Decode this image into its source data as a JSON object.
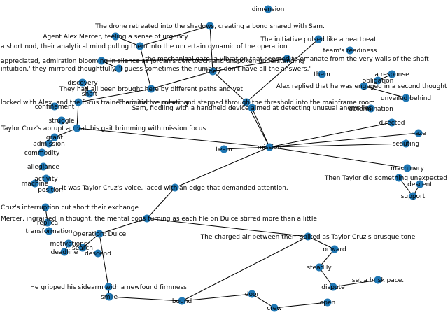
{
  "node_color": "#1f77b4",
  "edge_color": "#000000",
  "nodes": [
    {
      "id": "drone_sentence",
      "label": "The drone retreated into the shadows, creating a bond shared with Sam."
    },
    {
      "id": "dimension",
      "label": "dimension"
    },
    {
      "id": "agent_alex",
      "label": "Agent Alex Mercer, feeling a sense of urgency"
    },
    {
      "id": "initiative",
      "label": "The initiative pulsed like a heartbeat"
    },
    {
      "id": "short_nod",
      "label": "a short nod, their analytical mind pulling them into the uncertain dynamic of the operation"
    },
    {
      "id": "readiness",
      "label": "team's readiness"
    },
    {
      "id": "admiration",
      "label": "appreciated, admiration blooming in silence as Jordan's deft touch and unspoken understanding"
    },
    {
      "id": "mechanical",
      "label": "the mechanical gate, a vibration that seemed to emanate from the very walls of the shaft"
    },
    {
      "id": "intuition",
      "label": "intuition,' they mirrored thoughtfully. 'I guess sometimes the numbers don't have all the answers.'"
    },
    {
      "id": "discovery",
      "label": "discovery"
    },
    {
      "id": "shaft",
      "label": "shaft"
    },
    {
      "id": "they",
      "label": "They"
    },
    {
      "id": "them",
      "label": "them"
    },
    {
      "id": "response",
      "label": "a response"
    },
    {
      "id": "obligation",
      "label": "obligation"
    },
    {
      "id": "brought_here",
      "label": "They had all been brought here by different paths and yet"
    },
    {
      "id": "replied",
      "label": "Alex replied that he was engaged in a second thought"
    },
    {
      "id": "unveiled",
      "label": "unveiled behind"
    },
    {
      "id": "locked",
      "label": "locked with Alex, and the focus trained around the meeting"
    },
    {
      "id": "threshold",
      "label": "The initiative pulsed and stepped through the threshold into the mainframe room"
    },
    {
      "id": "determination",
      "label": "determination"
    },
    {
      "id": "confinement",
      "label": "confinement"
    },
    {
      "id": "struggle",
      "label": "struggle"
    },
    {
      "id": "handheld",
      "label": "Sam, fiddling with a handheld device aimed at detecting unusual anomalies"
    },
    {
      "id": "cruz_arrival",
      "label": "Taylor Cruz's abrupt arrival, his gait brimming with mission focus"
    },
    {
      "id": "grant",
      "label": "grant"
    },
    {
      "id": "mission",
      "label": "mission"
    },
    {
      "id": "team",
      "label": "team"
    },
    {
      "id": "haze",
      "label": "haze"
    },
    {
      "id": "directed",
      "label": "directed"
    },
    {
      "id": "scouting",
      "label": "scouting"
    },
    {
      "id": "machinery",
      "label": "machinery"
    },
    {
      "id": "admission",
      "label": "admission"
    },
    {
      "id": "commodity",
      "label": "commodity"
    },
    {
      "id": "allegiance",
      "label": "allegiance"
    },
    {
      "id": "activity",
      "label": "activity"
    },
    {
      "id": "machine",
      "label": "machine"
    },
    {
      "id": "position",
      "label": "position"
    },
    {
      "id": "taylor_did",
      "label": "Then Taylor did something unexpected"
    },
    {
      "id": "descent",
      "label": "descent"
    },
    {
      "id": "support",
      "label": "support"
    },
    {
      "id": "voice",
      "label": "It was Taylor Cruz's voice, laced with an edge that demanded attention."
    },
    {
      "id": "cut_short",
      "label": "Cruz's interruption cut short their exchange"
    },
    {
      "id": "mercer_ingrained",
      "label": "Mercer, ingrained in thought, the mental cogs turning as each file on Dulce stirred more than a little"
    },
    {
      "id": "replica",
      "label": "replica"
    },
    {
      "id": "transformation",
      "label": "transformation"
    },
    {
      "id": "op_dulce",
      "label": "Operation: Dulce"
    },
    {
      "id": "motivations",
      "label": "motivations"
    },
    {
      "id": "deadline",
      "label": "deadline"
    },
    {
      "id": "search",
      "label": "search"
    },
    {
      "id": "descend",
      "label": "descend"
    },
    {
      "id": "charged_air",
      "label": "The charged air between them spiked as Taylor Cruz's brusque tone"
    },
    {
      "id": "gripped",
      "label": "He gripped his sidearm with a newfound firmness"
    },
    {
      "id": "smile",
      "label": "smile"
    },
    {
      "id": "bound",
      "label": "bound"
    },
    {
      "id": "onward",
      "label": "onward"
    },
    {
      "id": "steadily",
      "label": "steadily"
    },
    {
      "id": "dispute",
      "label": "dispute"
    },
    {
      "id": "brisk",
      "label": "set a brisk pace."
    },
    {
      "id": "crew",
      "label": "crew"
    },
    {
      "id": "open",
      "label": "open"
    },
    {
      "id": "door",
      "label": "door"
    }
  ]
}
